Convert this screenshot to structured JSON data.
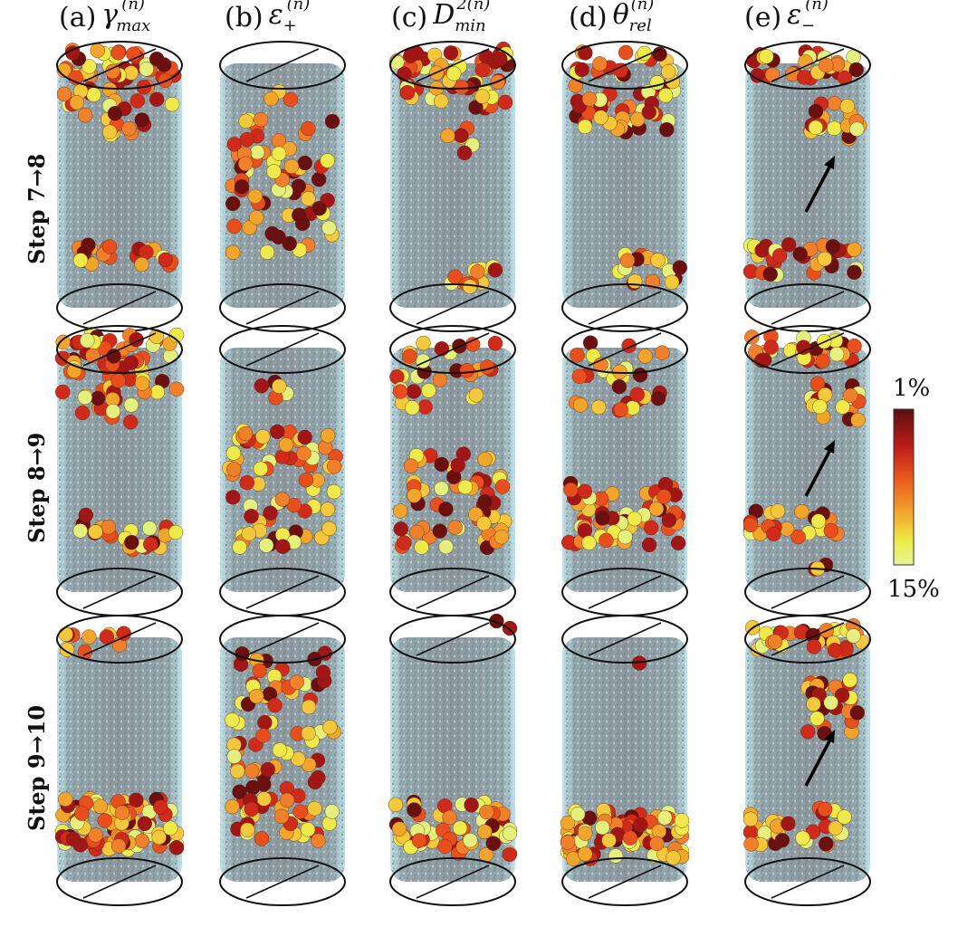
{
  "columns": [
    {
      "label": "(a)",
      "symbol": "γ",
      "sup": "(n)",
      "sub": "max"
    },
    {
      "label": "(b)",
      "symbol": "ε",
      "sup": "(n)",
      "sub": "+"
    },
    {
      "label": "(c)",
      "symbol": "D",
      "sup": "2(n)",
      "sub": "min"
    },
    {
      "label": "(d)",
      "symbol": "θ",
      "sup": "(n)",
      "sub": "rel"
    },
    {
      "label": "(e)",
      "symbol": "ε",
      "sup": "(n)",
      "sub": "−"
    }
  ],
  "rows": [
    {
      "label": "Step 7→8"
    },
    {
      "label": "Step 8→9"
    },
    {
      "label": "Step 9→10"
    }
  ],
  "colorbar": {
    "top_label": "1%",
    "bottom_label": "15%",
    "colors": [
      "#5a0f0f",
      "#b01818",
      "#e8421b",
      "#f07f1f",
      "#f2b52e",
      "#eff04a",
      "#e6f28a"
    ]
  },
  "colors": {
    "cylinder_bg": "#9aa6ab",
    "cylinder_edge": "#a7dbe6",
    "outline": "#111111",
    "arrow": "#000000"
  },
  "icons": {
    "arrow": "diagonal-arrow-icon"
  }
}
